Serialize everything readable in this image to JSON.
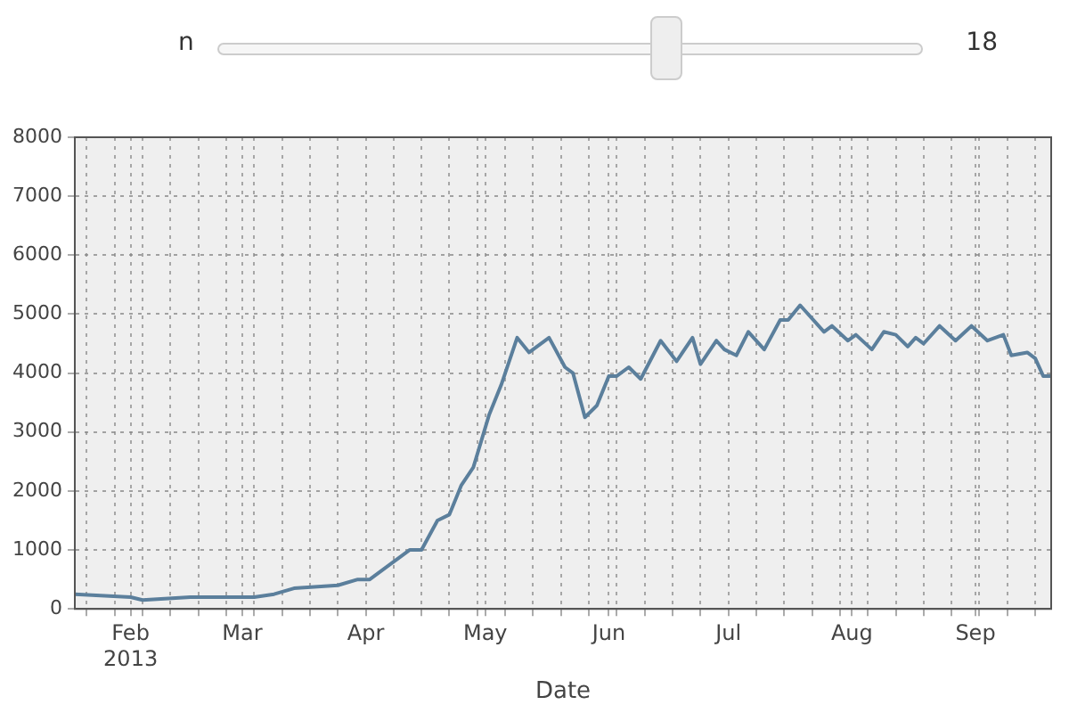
{
  "chart_data": {
    "type": "line",
    "xlabel": "Date",
    "x": [
      "2013-01-18",
      "2013-02-01",
      "2013-02-04",
      "2013-02-16",
      "2013-03-04",
      "2013-03-09",
      "2013-03-14",
      "2013-03-25",
      "2013-03-30",
      "2013-04-02",
      "2013-04-06",
      "2013-04-12",
      "2013-04-15",
      "2013-04-19",
      "2013-04-22",
      "2013-04-25",
      "2013-04-28",
      "2013-05-02",
      "2013-05-05",
      "2013-05-09",
      "2013-05-12",
      "2013-05-17",
      "2013-05-21",
      "2013-05-23",
      "2013-05-26",
      "2013-05-29",
      "2013-06-01",
      "2013-06-03",
      "2013-06-06",
      "2013-06-09",
      "2013-06-14",
      "2013-06-18",
      "2013-06-22",
      "2013-06-24",
      "2013-06-28",
      "2013-06-30",
      "2013-07-03",
      "2013-07-06",
      "2013-07-10",
      "2013-07-14",
      "2013-07-16",
      "2013-07-19",
      "2013-07-25",
      "2013-07-27",
      "2013-07-31",
      "2013-08-02",
      "2013-08-06",
      "2013-08-09",
      "2013-08-12",
      "2013-08-15",
      "2013-08-17",
      "2013-08-19",
      "2013-08-23",
      "2013-08-27",
      "2013-08-31",
      "2013-09-04",
      "2013-09-08",
      "2013-09-10",
      "2013-09-14",
      "2013-09-16",
      "2013-09-18",
      "2013-09-20"
    ],
    "series": [
      {
        "color": "#5b7f9c",
        "values": [
          250,
          200,
          150,
          200,
          200,
          250,
          350,
          400,
          500,
          500,
          700,
          1000,
          1000,
          1500,
          1600,
          2100,
          2400,
          3300,
          3800,
          4600,
          4350,
          4600,
          4100,
          4000,
          3250,
          3450,
          3950,
          3950,
          4100,
          3900,
          4550,
          4200,
          4600,
          4150,
          4550,
          4400,
          4300,
          4700,
          4400,
          4900,
          4900,
          5150,
          4700,
          4800,
          4550,
          4650,
          4400,
          4700,
          4650,
          4450,
          4600,
          4500,
          4800,
          4550,
          4800,
          4550,
          4650,
          4300,
          4350,
          4250,
          3950,
          3950
        ]
      }
    ],
    "xlim": [
      "2013-01-18",
      "2013-09-20"
    ],
    "xticks": [
      {
        "value": "2013-01-21",
        "label": null
      },
      {
        "value": "2013-01-28",
        "label": null
      },
      {
        "value": "2013-02-01",
        "label": "Feb\n2013"
      },
      {
        "value": "2013-02-04",
        "label": null
      },
      {
        "value": "2013-02-11",
        "label": null
      },
      {
        "value": "2013-02-18",
        "label": null
      },
      {
        "value": "2013-02-25",
        "label": null
      },
      {
        "value": "2013-03-01",
        "label": "Mar"
      },
      {
        "value": "2013-03-04",
        "label": null
      },
      {
        "value": "2013-03-11",
        "label": null
      },
      {
        "value": "2013-03-18",
        "label": null
      },
      {
        "value": "2013-03-25",
        "label": null
      },
      {
        "value": "2013-04-01",
        "label": "Apr"
      },
      {
        "value": "2013-04-08",
        "label": null
      },
      {
        "value": "2013-04-15",
        "label": null
      },
      {
        "value": "2013-04-22",
        "label": null
      },
      {
        "value": "2013-04-29",
        "label": null
      },
      {
        "value": "2013-05-01",
        "label": "May"
      },
      {
        "value": "2013-05-06",
        "label": null
      },
      {
        "value": "2013-05-13",
        "label": null
      },
      {
        "value": "2013-05-20",
        "label": null
      },
      {
        "value": "2013-05-27",
        "label": null
      },
      {
        "value": "2013-06-01",
        "label": "Jun"
      },
      {
        "value": "2013-06-03",
        "label": null
      },
      {
        "value": "2013-06-10",
        "label": null
      },
      {
        "value": "2013-06-17",
        "label": null
      },
      {
        "value": "2013-06-24",
        "label": null
      },
      {
        "value": "2013-07-01",
        "label": "Jul"
      },
      {
        "value": "2013-07-08",
        "label": null
      },
      {
        "value": "2013-07-15",
        "label": null
      },
      {
        "value": "2013-07-22",
        "label": null
      },
      {
        "value": "2013-07-29",
        "label": null
      },
      {
        "value": "2013-08-01",
        "label": "Aug"
      },
      {
        "value": "2013-08-05",
        "label": null
      },
      {
        "value": "2013-08-12",
        "label": null
      },
      {
        "value": "2013-08-19",
        "label": null
      },
      {
        "value": "2013-08-26",
        "label": null
      },
      {
        "value": "2013-09-01",
        "label": "Sep"
      },
      {
        "value": "2013-09-02",
        "label": null
      },
      {
        "value": "2013-09-09",
        "label": null
      },
      {
        "value": "2013-09-16",
        "label": null
      }
    ],
    "ylim": [
      0,
      8000
    ],
    "yticks": [
      0,
      1000,
      2000,
      3000,
      4000,
      5000,
      6000,
      7000,
      8000
    ],
    "grid": true,
    "legend": false,
    "marker": "none",
    "line_style": "solid",
    "annotations": [
      "n",
      "18"
    ]
  }
}
